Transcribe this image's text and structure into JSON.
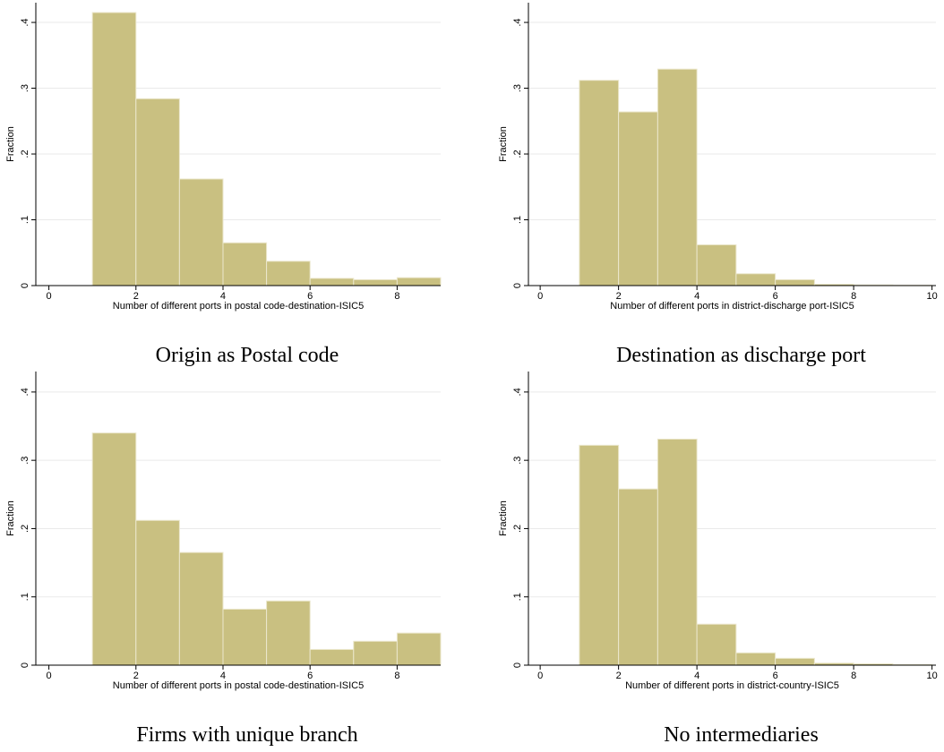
{
  "chart_data": [
    {
      "type": "histogram",
      "title": "Origin as Postal code",
      "x_label": "Number of different ports in postal code-destination-ISIC5",
      "y_label": "Fraction",
      "bins": [
        1,
        2,
        3,
        4,
        5,
        6,
        7,
        8,
        9
      ],
      "values": [
        0.415,
        0.284,
        0.162,
        0.065,
        0.037,
        0.011,
        0.009,
        0.012
      ],
      "color": "#c9c081",
      "xlim": [
        -0.3,
        9
      ],
      "xticks": [
        0,
        2,
        4,
        6,
        8
      ],
      "ylim": [
        0,
        0.43
      ],
      "yticks": [
        0,
        {
          "value": 0.1,
          "label": ".1"
        },
        {
          "value": 0.2,
          "label": ".2"
        },
        {
          "value": 0.3,
          "label": ".3"
        },
        {
          "value": 0.4,
          "label": ".4"
        }
      ],
      "grid": true
    },
    {
      "type": "histogram",
      "title": "Destination as discharge port",
      "x_label": "Number of different ports in district-discharge port-ISIC5",
      "y_label": "Fraction",
      "bins": [
        1,
        2,
        3,
        4,
        5,
        6,
        7,
        8,
        9,
        10
      ],
      "values": [
        0.312,
        0.264,
        0.329,
        0.062,
        0.018,
        0.009,
        0.002,
        0.001,
        0.0005
      ],
      "color": "#c9c081",
      "xlim": [
        -0.3,
        10.1
      ],
      "xticks": [
        0,
        2,
        4,
        6,
        8,
        10
      ],
      "ylim": [
        0,
        0.43
      ],
      "yticks": [
        0,
        {
          "value": 0.1,
          "label": ".1"
        },
        {
          "value": 0.2,
          "label": ".2"
        },
        {
          "value": 0.3,
          "label": ".3"
        },
        {
          "value": 0.4,
          "label": ".4"
        }
      ],
      "grid": true
    },
    {
      "type": "histogram",
      "title": "Firms with unique branch",
      "x_label": "Number of different ports in postal code-destination-ISIC5",
      "y_label": "Fraction",
      "bins": [
        1,
        2,
        3,
        4,
        5,
        6,
        7,
        8,
        9
      ],
      "values": [
        0.34,
        0.212,
        0.165,
        0.082,
        0.094,
        0.023,
        0.035,
        0.047
      ],
      "color": "#c9c081",
      "xlim": [
        -0.3,
        9
      ],
      "xticks": [
        0,
        2,
        4,
        6,
        8
      ],
      "ylim": [
        0,
        0.43
      ],
      "yticks": [
        0,
        {
          "value": 0.1,
          "label": ".1"
        },
        {
          "value": 0.2,
          "label": ".2"
        },
        {
          "value": 0.3,
          "label": ".3"
        },
        {
          "value": 0.4,
          "label": ".4"
        }
      ],
      "grid": true
    },
    {
      "type": "histogram",
      "title": "No intermediaries",
      "x_label": "Number of different ports in district-country-ISIC5",
      "y_label": "Fraction",
      "bins": [
        1,
        2,
        3,
        4,
        5,
        6,
        7,
        8,
        9,
        10
      ],
      "values": [
        0.322,
        0.258,
        0.331,
        0.06,
        0.018,
        0.01,
        0.003,
        0.002,
        0.001
      ],
      "color": "#c9c081",
      "xlim": [
        -0.3,
        10.1
      ],
      "xticks": [
        0,
        2,
        4,
        6,
        8,
        10
      ],
      "ylim": [
        0,
        0.43
      ],
      "yticks": [
        0,
        {
          "value": 0.1,
          "label": ".1"
        },
        {
          "value": 0.2,
          "label": ".2"
        },
        {
          "value": 0.3,
          "label": ".3"
        },
        {
          "value": 0.4,
          "label": ".4"
        }
      ],
      "grid": true
    }
  ]
}
